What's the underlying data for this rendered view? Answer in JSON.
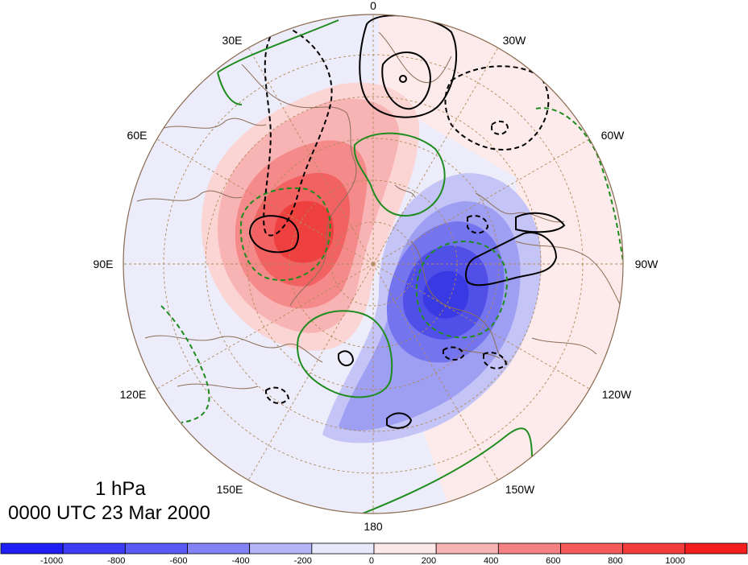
{
  "title": {
    "level": "1 hPa",
    "time": "0000 UTC 23 Mar 2000"
  },
  "map": {
    "projection": "north-polar-stereographic",
    "lon_labels": [
      "0",
      "30W",
      "60W",
      "90W",
      "120W",
      "150W",
      "180",
      "150E",
      "120E",
      "90E",
      "60E",
      "30E"
    ],
    "colors": {
      "negative_strong": "#1414f0",
      "positive_strong": "#f01414",
      "contour_black": "#000000",
      "contour_green": "#1e8c1e",
      "coast": "#8b6e5a",
      "grid": "#b08a5a"
    }
  },
  "colorbar": {
    "colors": [
      "#1e1ef5",
      "#3c3cf5",
      "#5a5af5",
      "#8282f5",
      "#b4b4f8",
      "#e8e8fb",
      "#fde8e8",
      "#f8b4b4",
      "#f58282",
      "#f55a5a",
      "#f53c3c",
      "#f51e1e"
    ],
    "tick_labels": [
      "-1000",
      "-800",
      "-600",
      "-400",
      "-200",
      "0",
      "200",
      "400",
      "600",
      "800",
      "1000"
    ]
  }
}
